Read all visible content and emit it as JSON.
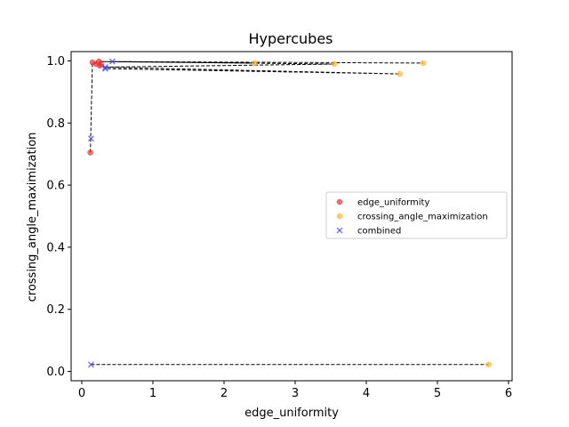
{
  "chart_data": {
    "type": "scatter",
    "title": "Hypercubes",
    "xlabel": "edge_uniformity",
    "ylabel": "crossing_angle_maximization",
    "xlim": [
      -0.15,
      6.05
    ],
    "ylim": [
      -0.03,
      1.03
    ],
    "xticks": [
      0,
      1,
      2,
      3,
      4,
      5,
      6
    ],
    "yticks": [
      0.0,
      0.2,
      0.4,
      0.6,
      0.8,
      1.0
    ],
    "legend_position": "center-right",
    "grid": false,
    "series": [
      {
        "name": "edge_uniformity",
        "color": "#e8353a",
        "marker": "circle",
        "points": [
          [
            0.12,
            0.705
          ],
          [
            0.15,
            0.995
          ],
          [
            0.2,
            0.99
          ],
          [
            0.24,
            0.998
          ],
          [
            0.27,
            0.988
          ],
          [
            0.25,
            0.985
          ]
        ]
      },
      {
        "name": "crossing_angle_maximization",
        "color": "#ffb732",
        "marker": "circle",
        "points": [
          [
            5.72,
            0.022
          ],
          [
            2.43,
            0.993
          ],
          [
            3.55,
            0.99
          ],
          [
            4.47,
            0.958
          ],
          [
            4.8,
            0.993
          ]
        ]
      },
      {
        "name": "combined",
        "color": "#4a4ae0",
        "marker": "x",
        "points": [
          [
            0.13,
            0.75
          ],
          [
            0.13,
            0.022
          ],
          [
            0.43,
            0.998
          ],
          [
            0.33,
            0.975
          ],
          [
            0.33,
            0.98
          ]
        ]
      }
    ],
    "pareto_lines": [
      [
        [
          0.13,
          0.022
        ],
        [
          5.72,
          0.022
        ]
      ],
      [
        [
          0.12,
          0.705
        ],
        [
          0.15,
          0.995
        ],
        [
          0.27,
          0.988
        ],
        [
          0.33,
          0.975
        ],
        [
          4.47,
          0.958
        ],
        [
          0.33,
          0.98
        ],
        [
          3.55,
          0.99
        ],
        [
          0.24,
          0.998
        ],
        [
          2.43,
          0.993
        ],
        [
          0.43,
          0.998
        ],
        [
          4.8,
          0.993
        ]
      ]
    ]
  }
}
